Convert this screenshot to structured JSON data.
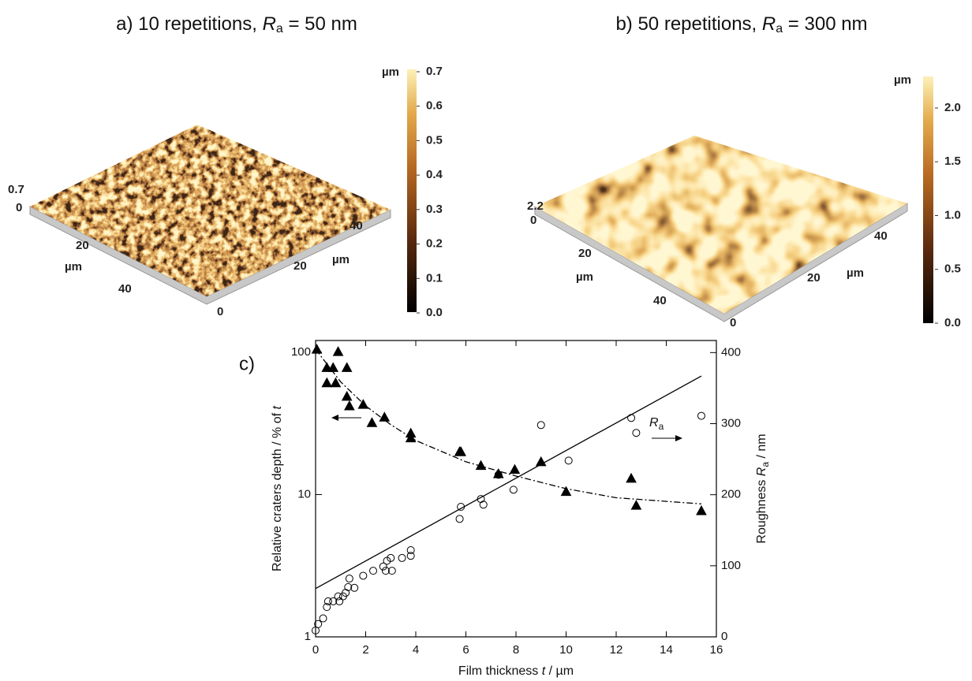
{
  "panels": [
    {
      "title": {
        "prefix": "a) 10 repetitions, ",
        "symbol": "R",
        "subscript": "a",
        "suffix": " = 50 nm"
      },
      "colorbar_unit": "µm",
      "colorbar_ticks": [
        "0.7",
        "0.6",
        "0.5",
        "0.4",
        "0.3",
        "0.2",
        "0.1",
        "0.0"
      ],
      "z_ticks": [
        "0.7",
        "0"
      ],
      "y_ticks": [
        "20",
        "40"
      ],
      "y_unit": "µm",
      "x_ticks": [
        "0",
        "20",
        "40"
      ],
      "x_unit": "µm"
    },
    {
      "title": {
        "prefix": "b) 50 repetitions, ",
        "symbol": "R",
        "subscript": "a",
        "suffix": " = 300 nm"
      },
      "colorbar_unit": "µm",
      "colorbar_ticks": [
        "2.0",
        "1.5",
        "1.0",
        "0.5",
        "0.0"
      ],
      "z_ticks": [
        "2.2",
        "0"
      ],
      "y_ticks": [
        "20",
        "40"
      ],
      "y_unit": "µm",
      "x_ticks": [
        "0",
        "20",
        "40"
      ],
      "x_unit": "µm"
    }
  ],
  "chart_data": {
    "type": "scatter",
    "panel_label": "c)",
    "x_label": {
      "text": "Film thickness ",
      "italic": "t",
      "suffix": " / µm"
    },
    "y_label": {
      "text": "Relative craters depth / % of ",
      "italic": "t"
    },
    "y2_label": {
      "text": "Roughness ",
      "italic": "R",
      "subscript": "a",
      "suffix": " / nm"
    },
    "xlim": [
      0,
      16
    ],
    "xticks": [
      0,
      2,
      4,
      6,
      8,
      10,
      12,
      14,
      16
    ],
    "ylim": [
      1,
      121
    ],
    "yticks": [
      1,
      10,
      100
    ],
    "y_log": true,
    "y2lim": [
      0,
      417
    ],
    "y2ticks": [
      0,
      100,
      200,
      300,
      400
    ],
    "series": [
      {
        "axis": "y",
        "marker": "triangle",
        "filled": true,
        "color": "#000000",
        "x": [
          0.05,
          0.45,
          0.45,
          0.7,
          0.8,
          0.9,
          1.25,
          1.25,
          1.35,
          1.9,
          2.25,
          2.75,
          3.8,
          3.8,
          5.75,
          5.8,
          6.6,
          7.3,
          7.95,
          9.0,
          10.0,
          12.6,
          12.8,
          15.4
        ],
        "values": [
          105,
          78,
          61,
          78,
          61,
          101,
          78,
          49,
          42,
          43,
          32,
          35,
          27,
          25,
          20,
          20,
          16,
          14,
          15,
          17,
          10.5,
          13,
          8.4,
          7.7
        ]
      },
      {
        "axis": "y2",
        "marker": "circle",
        "filled": false,
        "color": "#000000",
        "x": [
          0.0,
          0.1,
          0.3,
          0.45,
          0.5,
          0.7,
          0.9,
          0.95,
          1.1,
          1.2,
          1.3,
          1.35,
          1.55,
          1.9,
          2.3,
          2.7,
          2.8,
          2.85,
          3.0,
          3.05,
          3.45,
          3.8,
          3.8,
          5.75,
          5.8,
          6.6,
          6.7,
          7.3,
          7.9,
          9.0,
          10.1,
          12.6,
          12.8,
          15.4
        ],
        "values": [
          9,
          18,
          26,
          42,
          50,
          50,
          57,
          50,
          57,
          62,
          70,
          82,
          69,
          86,
          93,
          99,
          93,
          107,
          111,
          93,
          111,
          122,
          114,
          166,
          183,
          194,
          186,
          228,
          207,
          298,
          248,
          308,
          287,
          311
        ]
      },
      {
        "axis": "y",
        "line": "dashdot",
        "color": "#000000",
        "x": [
          0,
          1,
          2,
          3,
          4,
          6,
          8,
          10,
          12,
          15.4
        ],
        "values": [
          105,
          62,
          42,
          31,
          24,
          17,
          13.5,
          11,
          9.5,
          8.6
        ]
      },
      {
        "axis": "y2",
        "line": "solid",
        "color": "#000000",
        "x": [
          0,
          15.4
        ],
        "values": [
          68,
          367
        ]
      }
    ],
    "annotations": [
      {
        "text": "R",
        "subscript": "a"
      }
    ]
  }
}
